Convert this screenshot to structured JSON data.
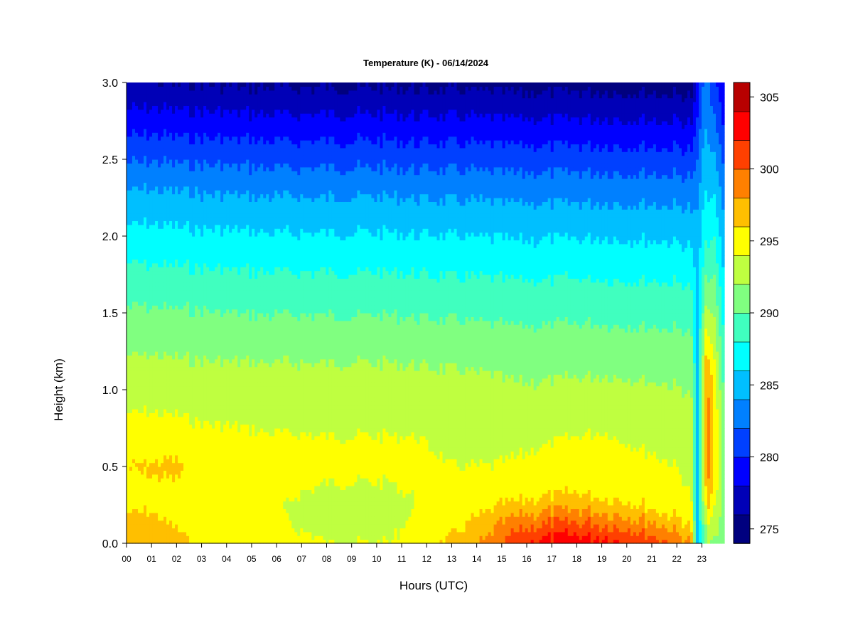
{
  "chart_data": {
    "type": "heatmap",
    "title": "Temperature (K) - 06/14/2024",
    "xlabel": "Hours (UTC)",
    "ylabel": "Height (km)",
    "x_ticks": [
      "00",
      "01",
      "02",
      "03",
      "04",
      "05",
      "06",
      "07",
      "08",
      "09",
      "10",
      "11",
      "12",
      "13",
      "14",
      "15",
      "16",
      "17",
      "18",
      "19",
      "20",
      "21",
      "22",
      "23"
    ],
    "xlim": [
      0,
      23.9
    ],
    "y_ticks": [
      "0.0",
      "0.5",
      "1.0",
      "1.5",
      "2.0",
      "2.5",
      "3.0"
    ],
    "ylim": [
      0,
      3.0
    ],
    "colorbar": {
      "ticks": [
        "275",
        "280",
        "285",
        "290",
        "295",
        "300",
        "305"
      ],
      "range": [
        274,
        306
      ],
      "levels": [
        274,
        276,
        278,
        280,
        282,
        284,
        286,
        288,
        290,
        292,
        294,
        296,
        298,
        300,
        302,
        304,
        306
      ],
      "colors": [
        "#00007f",
        "#0000b7",
        "#0000ff",
        "#0040ff",
        "#0080ff",
        "#00bfff",
        "#00ffff",
        "#40ffbf",
        "#80ff80",
        "#bfff40",
        "#ffff00",
        "#ffbf00",
        "#ff8000",
        "#ff4000",
        "#ff0000",
        "#b70000",
        "#7f0000"
      ]
    },
    "temperature_profile": {
      "height_km": [
        0.0,
        0.1,
        0.2,
        0.3,
        0.5,
        0.7,
        0.9,
        1.1,
        1.3,
        1.5,
        1.7,
        1.9,
        2.1,
        2.3,
        2.5,
        2.7,
        2.9,
        3.0
      ],
      "hours": [
        0.0,
        1.0,
        2.0,
        3.0,
        4.5,
        5.5,
        8.0,
        10.5,
        11.5,
        13.0,
        14.5,
        15.5,
        16.5,
        18.0,
        19.0,
        20.0,
        21.0,
        22.0,
        22.6,
        22.8,
        23.0,
        23.2,
        23.5,
        23.9
      ],
      "temp_k": [
        [
          297.5,
          297.0,
          296.5,
          295.5,
          295.0,
          295.5,
          294.0,
          294.0,
          295.0,
          296.5,
          298.5,
          301.0,
          302.5,
          303.5,
          303.0,
          302.5,
          301.5,
          299.5,
          298.0,
          285.0,
          288.0,
          291.0,
          292.0,
          291.0
        ],
        [
          296.5,
          296.5,
          296.0,
          295.2,
          294.8,
          294.5,
          293.5,
          293.5,
          294.5,
          295.5,
          297.5,
          299.5,
          300.5,
          301.0,
          300.5,
          300.0,
          299.0,
          297.5,
          296.0,
          285.0,
          289.0,
          293.0,
          293.0,
          291.0
        ],
        [
          296.0,
          296.0,
          295.5,
          295.0,
          294.6,
          294.2,
          293.5,
          293.5,
          294.0,
          294.8,
          296.0,
          297.5,
          298.0,
          298.5,
          298.2,
          297.5,
          296.5,
          295.5,
          294.5,
          285.0,
          290.0,
          295.0,
          294.0,
          291.0
        ],
        [
          295.5,
          295.5,
          295.3,
          294.8,
          294.4,
          294.2,
          293.8,
          293.8,
          294.0,
          294.3,
          294.8,
          295.5,
          296.0,
          296.2,
          296.0,
          295.6,
          295.0,
          294.5,
          294.0,
          285.0,
          291.0,
          297.0,
          295.0,
          291.0
        ],
        [
          296.0,
          296.2,
          296.5,
          295.0,
          294.5,
          294.4,
          294.2,
          294.2,
          294.5,
          294.0,
          294.0,
          294.2,
          294.5,
          294.8,
          295.0,
          294.6,
          294.3,
          294.0,
          293.5,
          285.0,
          292.0,
          299.0,
          296.0,
          291.0
        ],
        [
          294.6,
          294.7,
          294.6,
          294.3,
          294.2,
          294.1,
          294.0,
          294.0,
          294.0,
          293.6,
          293.6,
          293.5,
          293.7,
          294.0,
          294.2,
          293.8,
          293.6,
          293.5,
          293.0,
          285.0,
          292.0,
          299.5,
          296.0,
          291.0
        ],
        [
          293.8,
          293.8,
          293.7,
          293.6,
          293.5,
          293.4,
          293.4,
          293.4,
          293.3,
          293.0,
          292.8,
          292.6,
          292.6,
          292.8,
          292.9,
          292.8,
          292.7,
          292.5,
          292.2,
          285.0,
          291.5,
          299.5,
          295.5,
          290.0
        ],
        [
          292.8,
          292.8,
          292.7,
          292.6,
          292.5,
          292.5,
          292.5,
          292.5,
          292.4,
          292.2,
          292.0,
          291.8,
          291.8,
          291.9,
          292.0,
          291.9,
          291.8,
          291.7,
          291.5,
          285.0,
          291.0,
          298.5,
          294.5,
          289.0
        ],
        [
          291.5,
          291.5,
          291.4,
          291.3,
          291.3,
          291.2,
          291.2,
          291.2,
          291.1,
          291.0,
          290.8,
          290.7,
          290.7,
          290.8,
          290.8,
          290.7,
          290.7,
          290.6,
          290.4,
          285.0,
          290.0,
          296.0,
          293.0,
          288.0
        ],
        [
          290.3,
          290.3,
          290.2,
          290.1,
          290.0,
          289.9,
          289.9,
          289.9,
          289.8,
          289.7,
          289.6,
          289.5,
          289.5,
          289.6,
          289.6,
          289.5,
          289.5,
          289.4,
          289.2,
          285.0,
          289.0,
          293.0,
          291.5,
          287.0
        ],
        [
          288.9,
          288.9,
          288.8,
          288.7,
          288.6,
          288.5,
          288.5,
          288.5,
          288.4,
          288.3,
          288.2,
          288.1,
          288.1,
          288.2,
          288.2,
          288.1,
          288.1,
          288.0,
          287.8,
          285.0,
          288.0,
          290.5,
          290.0,
          286.0
        ],
        [
          287.4,
          287.4,
          287.3,
          287.2,
          287.1,
          287.0,
          287.0,
          287.0,
          286.9,
          286.8,
          286.7,
          286.6,
          286.6,
          286.7,
          286.7,
          286.6,
          286.6,
          286.5,
          286.3,
          284.5,
          287.0,
          288.5,
          288.5,
          285.0
        ],
        [
          285.8,
          285.8,
          285.7,
          285.6,
          285.5,
          285.4,
          285.4,
          285.4,
          285.3,
          285.2,
          285.1,
          285.0,
          285.0,
          285.1,
          285.1,
          285.0,
          285.0,
          284.9,
          284.7,
          284.0,
          286.0,
          287.0,
          287.0,
          284.0
        ],
        [
          284.0,
          284.0,
          283.9,
          283.8,
          283.7,
          283.6,
          283.6,
          283.6,
          283.5,
          283.4,
          283.3,
          283.2,
          283.2,
          283.3,
          283.3,
          283.2,
          283.2,
          283.1,
          282.9,
          283.0,
          285.0,
          286.0,
          285.5,
          283.0
        ],
        [
          281.8,
          281.8,
          281.7,
          281.6,
          281.5,
          281.4,
          281.4,
          281.4,
          281.3,
          281.2,
          281.1,
          281.0,
          281.0,
          281.1,
          281.1,
          281.0,
          281.0,
          280.9,
          280.7,
          281.5,
          284.0,
          285.0,
          284.0,
          281.5
        ],
        [
          279.5,
          279.5,
          279.4,
          279.3,
          279.2,
          279.1,
          279.1,
          279.1,
          279.0,
          278.9,
          278.8,
          278.7,
          278.7,
          278.8,
          278.8,
          278.7,
          278.7,
          278.6,
          278.4,
          280.0,
          283.0,
          284.0,
          282.5,
          280.0
        ],
        [
          277.2,
          277.2,
          277.1,
          277.0,
          276.9,
          276.8,
          276.8,
          276.8,
          276.7,
          276.6,
          276.5,
          276.4,
          276.4,
          276.5,
          276.5,
          276.4,
          276.4,
          276.3,
          276.1,
          279.0,
          282.0,
          283.0,
          281.0,
          278.5
        ],
        [
          276.0,
          276.0,
          275.9,
          275.8,
          275.7,
          275.6,
          275.6,
          275.6,
          275.5,
          275.4,
          275.3,
          275.2,
          275.2,
          275.3,
          275.3,
          275.2,
          275.2,
          275.1,
          274.9,
          278.5,
          281.5,
          282.5,
          280.5,
          278.0
        ]
      ]
    }
  }
}
